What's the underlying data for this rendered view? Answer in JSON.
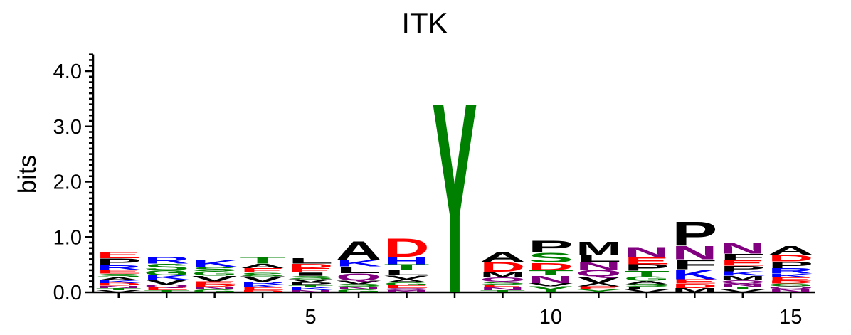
{
  "chart_data": {
    "type": "sequence-logo",
    "title": "ITK",
    "ylabel": "bits",
    "xlabel": "",
    "ylim": [
      0,
      4.3
    ],
    "y_ticks": [
      {
        "value": 0.0,
        "label": "0.0"
      },
      {
        "value": 1.0,
        "label": "1.0"
      },
      {
        "value": 2.0,
        "label": "2.0"
      },
      {
        "value": 3.0,
        "label": "3.0"
      },
      {
        "value": 4.0,
        "label": "4.0"
      }
    ],
    "x_ticks": [
      {
        "position": 5,
        "label": "5"
      },
      {
        "position": 10,
        "label": "10"
      },
      {
        "position": 15,
        "label": "15"
      }
    ],
    "grid": false,
    "colors": {
      "E": "#ff0000",
      "D": "#ff0000",
      "R": "#0000ff",
      "K": "#0000ff",
      "H": "#0000ff",
      "S": "#008000",
      "G": "#008000",
      "T": "#008000",
      "Y": "#008000",
      "C": "#008000",
      "N": "#800080",
      "Q": "#800080",
      "P": "#000000",
      "A": "#000000",
      "V": "#000000",
      "L": "#000000",
      "I": "#000000",
      "M": "#000000",
      "F": "#000000",
      "W": "#000000"
    },
    "positions": [
      {
        "position": 1,
        "letters": [
          [
            "V",
            0.04
          ],
          [
            "T",
            0.04
          ],
          [
            "N",
            0.04
          ],
          [
            "D",
            0.05
          ],
          [
            "K",
            0.05
          ],
          [
            "A",
            0.05
          ],
          [
            "S",
            0.07
          ],
          [
            "E",
            0.07
          ],
          [
            "R",
            0.08
          ],
          [
            "P",
            0.13
          ],
          [
            "E",
            0.12
          ]
        ]
      },
      {
        "position": 2,
        "letters": [
          [
            "T",
            0.04
          ],
          [
            "E",
            0.05
          ],
          [
            "Q",
            0.05
          ],
          [
            "V",
            0.09
          ],
          [
            "K",
            0.08
          ],
          [
            "G",
            0.09
          ],
          [
            "S",
            0.12
          ],
          [
            "R",
            0.13
          ]
        ]
      },
      {
        "position": 3,
        "letters": [
          [
            "G",
            0.05
          ],
          [
            "N",
            0.05
          ],
          [
            "D",
            0.05
          ],
          [
            "E",
            0.05
          ],
          [
            "V",
            0.1
          ],
          [
            "G",
            0.08
          ],
          [
            "S",
            0.08
          ],
          [
            "K",
            0.12
          ]
        ]
      },
      {
        "position": 4,
        "letters": [
          [
            "D",
            0.04
          ],
          [
            "E",
            0.05
          ],
          [
            "K",
            0.05
          ],
          [
            "R",
            0.05
          ],
          [
            "V",
            0.1
          ],
          [
            "S",
            0.07
          ],
          [
            "E",
            0.08
          ],
          [
            "A",
            0.08
          ],
          [
            "T",
            0.13
          ]
        ]
      },
      {
        "position": 5,
        "letters": [
          [
            "N",
            0.04
          ],
          [
            "K",
            0.05
          ],
          [
            "T",
            0.04
          ],
          [
            "P",
            0.05
          ],
          [
            "V",
            0.06
          ],
          [
            "S",
            0.06
          ],
          [
            "I",
            0.06
          ],
          [
            "E",
            0.08
          ],
          [
            "D",
            0.08
          ],
          [
            "L",
            0.1
          ]
        ]
      },
      {
        "position": 6,
        "letters": [
          [
            "G",
            0.05
          ],
          [
            "N",
            0.05
          ],
          [
            "S",
            0.05
          ],
          [
            "V",
            0.07
          ],
          [
            "Q",
            0.13
          ],
          [
            "L",
            0.12
          ],
          [
            "K",
            0.12
          ],
          [
            "A",
            0.34
          ]
        ]
      },
      {
        "position": 7,
        "letters": [
          [
            "N",
            0.04
          ],
          [
            "Q",
            0.04
          ],
          [
            "E",
            0.05
          ],
          [
            "G",
            0.05
          ],
          [
            "A",
            0.06
          ],
          [
            "V",
            0.07
          ],
          [
            "L",
            0.1
          ],
          [
            "T",
            0.1
          ],
          [
            "H",
            0.13
          ],
          [
            "D",
            0.34
          ]
        ]
      },
      {
        "position": 8,
        "letters": [
          [
            "Y",
            3.55
          ]
        ]
      },
      {
        "position": 9,
        "letters": [
          [
            "T",
            0.04
          ],
          [
            "N",
            0.05
          ],
          [
            "E",
            0.05
          ],
          [
            "S",
            0.05
          ],
          [
            "Q",
            0.08
          ],
          [
            "M",
            0.1
          ],
          [
            "D",
            0.18
          ],
          [
            "A",
            0.18
          ]
        ]
      },
      {
        "position": 10,
        "letters": [
          [
            "Y",
            0.11
          ],
          [
            "V",
            0.06
          ],
          [
            "N",
            0.14
          ],
          [
            "T",
            0.09
          ],
          [
            "D",
            0.14
          ],
          [
            "S",
            0.18
          ],
          [
            "P",
            0.22
          ]
        ]
      },
      {
        "position": 11,
        "letters": [
          [
            "Y",
            0.05
          ],
          [
            "E",
            0.06
          ],
          [
            "A",
            0.06
          ],
          [
            "V",
            0.12
          ],
          [
            "Q",
            0.12
          ],
          [
            "N",
            0.14
          ],
          [
            "L",
            0.13
          ],
          [
            "M",
            0.24
          ]
        ]
      },
      {
        "position": 12,
        "letters": [
          [
            "V",
            0.05
          ],
          [
            "L",
            0.05
          ],
          [
            "S",
            0.05
          ],
          [
            "A",
            0.06
          ],
          [
            "G",
            0.08
          ],
          [
            "T",
            0.1
          ],
          [
            "P",
            0.12
          ],
          [
            "E",
            0.13
          ],
          [
            "N",
            0.18
          ]
        ]
      },
      {
        "position": 13,
        "letters": [
          [
            "M",
            0.08
          ],
          [
            "D",
            0.08
          ],
          [
            "E",
            0.08
          ],
          [
            "K",
            0.18
          ],
          [
            "F",
            0.18
          ],
          [
            "N",
            0.25
          ],
          [
            "P",
            0.45
          ]
        ]
      },
      {
        "position": 14,
        "letters": [
          [
            "V",
            0.05
          ],
          [
            "T",
            0.05
          ],
          [
            "N",
            0.06
          ],
          [
            "Q",
            0.06
          ],
          [
            "M",
            0.08
          ],
          [
            "K",
            0.08
          ],
          [
            "P",
            0.1
          ],
          [
            "E",
            0.1
          ],
          [
            "F",
            0.12
          ],
          [
            "N",
            0.2
          ]
        ]
      },
      {
        "position": 15,
        "letters": [
          [
            "N",
            0.06
          ],
          [
            "Q",
            0.05
          ],
          [
            "G",
            0.05
          ],
          [
            "D",
            0.05
          ],
          [
            "E",
            0.06
          ],
          [
            "K",
            0.07
          ],
          [
            "R",
            0.1
          ],
          [
            "P",
            0.12
          ],
          [
            "D",
            0.12
          ],
          [
            "A",
            0.16
          ]
        ]
      }
    ]
  }
}
